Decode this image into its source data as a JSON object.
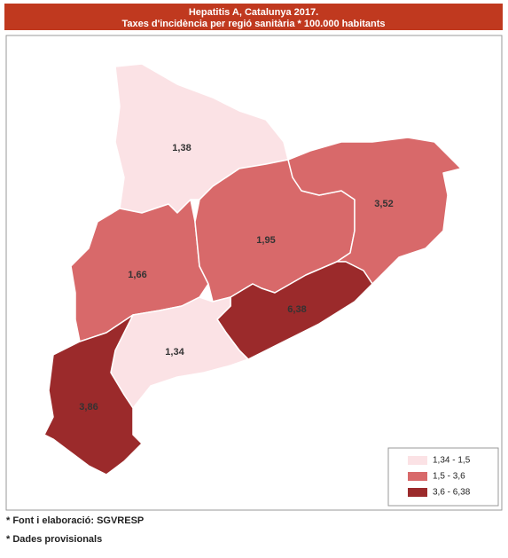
{
  "title": "Hepatitis A, Catalunya 2017.",
  "subtitle": "Taxes d'incidència per regió sanitària * 100.000 habitants",
  "regions": [
    {
      "label": "1,38",
      "color": "#fbe2e5"
    },
    {
      "label": "1,66",
      "color": "#d8696a"
    },
    {
      "label": "1,95",
      "color": "#d8696a"
    },
    {
      "label": "3,52",
      "color": "#d8696a"
    },
    {
      "label": "6,38",
      "color": "#9b2a2b"
    },
    {
      "label": "1,34",
      "color": "#fbe2e5"
    },
    {
      "label": "3,86",
      "color": "#9b2a2b"
    }
  ],
  "legend": [
    {
      "label": "1,34 - 1,5",
      "color": "#fbe2e5"
    },
    {
      "label": "1,5 - 3,6",
      "color": "#d8696a"
    },
    {
      "label": "3,6 - 6,38",
      "color": "#9b2a2b"
    }
  ],
  "footnotes": [
    "* Font i elaboració: SGVRESP",
    "* Dades provisionals"
  ]
}
